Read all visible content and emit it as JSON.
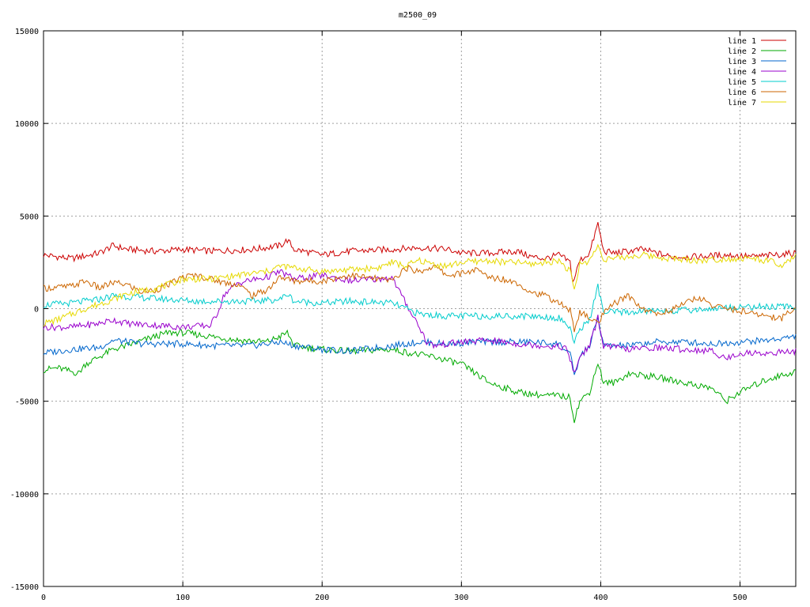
{
  "chart_data": {
    "type": "line",
    "title": "m2500_09",
    "xlabel": "",
    "ylabel": "",
    "xlim": [
      0,
      540
    ],
    "ylim": [
      -15000,
      15000
    ],
    "xticks": [
      0,
      100,
      200,
      300,
      400,
      500
    ],
    "yticks": [
      -15000,
      -10000,
      -5000,
      0,
      5000,
      10000,
      15000
    ],
    "grid": true,
    "legend_position": "top-right",
    "series": [
      {
        "name": "line 1",
        "color": "#cc0000",
        "points": [
          [
            0,
            2900
          ],
          [
            20,
            2700
          ],
          [
            40,
            3000
          ],
          [
            50,
            3400
          ],
          [
            60,
            3200
          ],
          [
            80,
            3100
          ],
          [
            100,
            3200
          ],
          [
            120,
            3100
          ],
          [
            150,
            3200
          ],
          [
            170,
            3400
          ],
          [
            175,
            3700
          ],
          [
            180,
            3200
          ],
          [
            200,
            2900
          ],
          [
            220,
            3100
          ],
          [
            250,
            3200
          ],
          [
            270,
            3300
          ],
          [
            290,
            3200
          ],
          [
            300,
            3000
          ],
          [
            320,
            3000
          ],
          [
            340,
            3100
          ],
          [
            350,
            2800
          ],
          [
            360,
            2700
          ],
          [
            370,
            2900
          ],
          [
            378,
            2500
          ],
          [
            380,
            1400
          ],
          [
            385,
            2600
          ],
          [
            392,
            3000
          ],
          [
            398,
            4600
          ],
          [
            402,
            3100
          ],
          [
            410,
            3000
          ],
          [
            430,
            3200
          ],
          [
            450,
            2800
          ],
          [
            470,
            2800
          ],
          [
            490,
            2900
          ],
          [
            510,
            2800
          ],
          [
            525,
            2900
          ],
          [
            540,
            3000
          ]
        ]
      },
      {
        "name": "line 2",
        "color": "#00aa00",
        "points": [
          [
            0,
            -3300
          ],
          [
            10,
            -3200
          ],
          [
            25,
            -3500
          ],
          [
            30,
            -3000
          ],
          [
            50,
            -2200
          ],
          [
            60,
            -2000
          ],
          [
            80,
            -1500
          ],
          [
            90,
            -1300
          ],
          [
            100,
            -1300
          ],
          [
            120,
            -1500
          ],
          [
            140,
            -1700
          ],
          [
            160,
            -1800
          ],
          [
            170,
            -1500
          ],
          [
            175,
            -1300
          ],
          [
            180,
            -2000
          ],
          [
            200,
            -2200
          ],
          [
            220,
            -2300
          ],
          [
            250,
            -2200
          ],
          [
            270,
            -2500
          ],
          [
            280,
            -2600
          ],
          [
            300,
            -3000
          ],
          [
            310,
            -3500
          ],
          [
            320,
            -4000
          ],
          [
            340,
            -4500
          ],
          [
            360,
            -4700
          ],
          [
            370,
            -4700
          ],
          [
            378,
            -4800
          ],
          [
            381,
            -6000
          ],
          [
            385,
            -5000
          ],
          [
            392,
            -4500
          ],
          [
            398,
            -2900
          ],
          [
            402,
            -4000
          ],
          [
            410,
            -4000
          ],
          [
            420,
            -3500
          ],
          [
            440,
            -3700
          ],
          [
            460,
            -4000
          ],
          [
            480,
            -4300
          ],
          [
            490,
            -5000
          ],
          [
            500,
            -4500
          ],
          [
            520,
            -3800
          ],
          [
            540,
            -3400
          ]
        ]
      },
      {
        "name": "line 3",
        "color": "#0066cc",
        "points": [
          [
            0,
            -2400
          ],
          [
            20,
            -2200
          ],
          [
            40,
            -2100
          ],
          [
            50,
            -1700
          ],
          [
            70,
            -1900
          ],
          [
            100,
            -1900
          ],
          [
            120,
            -2000
          ],
          [
            150,
            -2000
          ],
          [
            170,
            -1800
          ],
          [
            180,
            -2000
          ],
          [
            200,
            -2200
          ],
          [
            220,
            -2300
          ],
          [
            250,
            -2000
          ],
          [
            270,
            -1800
          ],
          [
            290,
            -1900
          ],
          [
            310,
            -1800
          ],
          [
            330,
            -1800
          ],
          [
            350,
            -1800
          ],
          [
            370,
            -1900
          ],
          [
            378,
            -2400
          ],
          [
            381,
            -3700
          ],
          [
            385,
            -2600
          ],
          [
            392,
            -2000
          ],
          [
            398,
            -500
          ],
          [
            402,
            -2000
          ],
          [
            420,
            -2000
          ],
          [
            440,
            -1800
          ],
          [
            460,
            -1800
          ],
          [
            480,
            -1900
          ],
          [
            500,
            -1800
          ],
          [
            520,
            -1700
          ],
          [
            540,
            -1500
          ]
        ]
      },
      {
        "name": "line 4",
        "color": "#9900cc",
        "points": [
          [
            0,
            -1000
          ],
          [
            20,
            -1000
          ],
          [
            40,
            -800
          ],
          [
            50,
            -600
          ],
          [
            60,
            -800
          ],
          [
            80,
            -900
          ],
          [
            100,
            -1000
          ],
          [
            120,
            -900
          ],
          [
            125,
            -200
          ],
          [
            130,
            800
          ],
          [
            140,
            1400
          ],
          [
            160,
            1700
          ],
          [
            170,
            2000
          ],
          [
            180,
            1600
          ],
          [
            200,
            1800
          ],
          [
            220,
            1500
          ],
          [
            240,
            1600
          ],
          [
            250,
            1700
          ],
          [
            260,
            300
          ],
          [
            270,
            -1000
          ],
          [
            275,
            -1800
          ],
          [
            280,
            -2000
          ],
          [
            300,
            -1800
          ],
          [
            320,
            -1700
          ],
          [
            340,
            -1900
          ],
          [
            360,
            -2000
          ],
          [
            375,
            -2100
          ],
          [
            381,
            -3500
          ],
          [
            385,
            -2600
          ],
          [
            392,
            -2000
          ],
          [
            398,
            -500
          ],
          [
            402,
            -2000
          ],
          [
            420,
            -2200
          ],
          [
            440,
            -2100
          ],
          [
            460,
            -2200
          ],
          [
            480,
            -2300
          ],
          [
            490,
            -2700
          ],
          [
            500,
            -2400
          ],
          [
            520,
            -2400
          ],
          [
            540,
            -2300
          ]
        ]
      },
      {
        "name": "line 5",
        "color": "#00cccc",
        "points": [
          [
            0,
            200
          ],
          [
            20,
            300
          ],
          [
            40,
            500
          ],
          [
            50,
            700
          ],
          [
            70,
            600
          ],
          [
            90,
            500
          ],
          [
            110,
            400
          ],
          [
            130,
            400
          ],
          [
            150,
            400
          ],
          [
            170,
            500
          ],
          [
            175,
            800
          ],
          [
            180,
            400
          ],
          [
            200,
            300
          ],
          [
            220,
            400
          ],
          [
            250,
            300
          ],
          [
            260,
            0
          ],
          [
            270,
            -300
          ],
          [
            290,
            -400
          ],
          [
            310,
            -400
          ],
          [
            330,
            -400
          ],
          [
            350,
            -400
          ],
          [
            370,
            -500
          ],
          [
            378,
            -1000
          ],
          [
            381,
            -1900
          ],
          [
            385,
            -1100
          ],
          [
            392,
            -600
          ],
          [
            398,
            1200
          ],
          [
            402,
            -200
          ],
          [
            420,
            -200
          ],
          [
            440,
            -100
          ],
          [
            460,
            -100
          ],
          [
            480,
            0
          ],
          [
            500,
            100
          ],
          [
            520,
            100
          ],
          [
            540,
            100
          ]
        ]
      },
      {
        "name": "line 6",
        "color": "#cc6600",
        "points": [
          [
            0,
            1100
          ],
          [
            20,
            1200
          ],
          [
            30,
            1500
          ],
          [
            40,
            1100
          ],
          [
            50,
            1400
          ],
          [
            60,
            1300
          ],
          [
            70,
            900
          ],
          [
            80,
            1000
          ],
          [
            90,
            1300
          ],
          [
            100,
            1700
          ],
          [
            110,
            1800
          ],
          [
            120,
            1600
          ],
          [
            130,
            1400
          ],
          [
            140,
            1300
          ],
          [
            150,
            700
          ],
          [
            160,
            1000
          ],
          [
            170,
            1700
          ],
          [
            180,
            1500
          ],
          [
            200,
            1500
          ],
          [
            220,
            1800
          ],
          [
            240,
            1600
          ],
          [
            250,
            1500
          ],
          [
            260,
            2200
          ],
          [
            270,
            2000
          ],
          [
            280,
            2300
          ],
          [
            290,
            1800
          ],
          [
            300,
            1900
          ],
          [
            310,
            2100
          ],
          [
            320,
            1700
          ],
          [
            330,
            1600
          ],
          [
            340,
            1400
          ],
          [
            350,
            900
          ],
          [
            360,
            700
          ],
          [
            370,
            300
          ],
          [
            378,
            -100
          ],
          [
            381,
            -1100
          ],
          [
            385,
            -200
          ],
          [
            392,
            -500
          ],
          [
            398,
            -800
          ],
          [
            402,
            -300
          ],
          [
            410,
            300
          ],
          [
            420,
            700
          ],
          [
            430,
            0
          ],
          [
            440,
            -300
          ],
          [
            450,
            -100
          ],
          [
            460,
            300
          ],
          [
            470,
            600
          ],
          [
            480,
            200
          ],
          [
            490,
            0
          ],
          [
            500,
            -100
          ],
          [
            510,
            -300
          ],
          [
            520,
            -400
          ],
          [
            530,
            -500
          ],
          [
            540,
            100
          ]
        ]
      },
      {
        "name": "line 7",
        "color": "#e6d900",
        "points": [
          [
            0,
            -800
          ],
          [
            10,
            -600
          ],
          [
            20,
            -300
          ],
          [
            30,
            0
          ],
          [
            50,
            500
          ],
          [
            60,
            800
          ],
          [
            80,
            1100
          ],
          [
            90,
            1300
          ],
          [
            100,
            1600
          ],
          [
            120,
            1600
          ],
          [
            140,
            1800
          ],
          [
            160,
            2000
          ],
          [
            170,
            2300
          ],
          [
            180,
            2200
          ],
          [
            200,
            2000
          ],
          [
            220,
            2100
          ],
          [
            240,
            2200
          ],
          [
            250,
            2500
          ],
          [
            260,
            2300
          ],
          [
            270,
            2600
          ],
          [
            280,
            2400
          ],
          [
            290,
            2300
          ],
          [
            300,
            2500
          ],
          [
            320,
            2600
          ],
          [
            330,
            2500
          ],
          [
            340,
            2500
          ],
          [
            350,
            2400
          ],
          [
            360,
            2500
          ],
          [
            370,
            2600
          ],
          [
            378,
            2000
          ],
          [
            381,
            1000
          ],
          [
            385,
            2400
          ],
          [
            392,
            2600
          ],
          [
            398,
            3400
          ],
          [
            402,
            2700
          ],
          [
            410,
            2700
          ],
          [
            430,
            2900
          ],
          [
            450,
            2700
          ],
          [
            470,
            2600
          ],
          [
            490,
            2700
          ],
          [
            510,
            2700
          ],
          [
            525,
            2500
          ],
          [
            530,
            2200
          ],
          [
            540,
            2900
          ]
        ]
      }
    ]
  }
}
